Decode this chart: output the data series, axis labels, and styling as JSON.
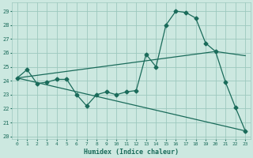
{
  "xlabel": "Humidex (Indice chaleur)",
  "bg_color": "#cce8e0",
  "grid_color": "#9dc8be",
  "line_color": "#1a6b5a",
  "xlim": [
    -0.5,
    23.5
  ],
  "ylim": [
    19.8,
    29.6
  ],
  "yticks": [
    20,
    21,
    22,
    23,
    24,
    25,
    26,
    27,
    28,
    29
  ],
  "xticks": [
    0,
    1,
    2,
    3,
    4,
    5,
    6,
    7,
    8,
    9,
    10,
    11,
    12,
    13,
    14,
    15,
    16,
    17,
    18,
    19,
    20,
    21,
    22,
    23
  ],
  "line1_x": [
    0,
    1,
    2,
    3,
    4,
    5,
    6,
    7,
    8,
    9,
    10,
    11,
    12,
    13,
    14,
    15,
    16,
    17,
    18,
    19,
    20,
    21,
    22,
    23
  ],
  "line1_y": [
    24.2,
    24.8,
    23.8,
    23.9,
    24.1,
    24.1,
    23.0,
    22.2,
    23.0,
    23.2,
    23.0,
    23.2,
    23.3,
    25.9,
    25.0,
    28.0,
    29.0,
    28.9,
    28.5,
    26.7,
    26.1,
    23.9,
    22.1,
    20.4
  ],
  "line2_x": [
    0,
    23
  ],
  "line2_y": [
    24.2,
    20.4
  ],
  "line3_x": [
    0,
    20,
    23
  ],
  "line3_y": [
    24.2,
    26.1,
    25.8
  ],
  "marker_size": 2.5,
  "line_width": 0.9
}
